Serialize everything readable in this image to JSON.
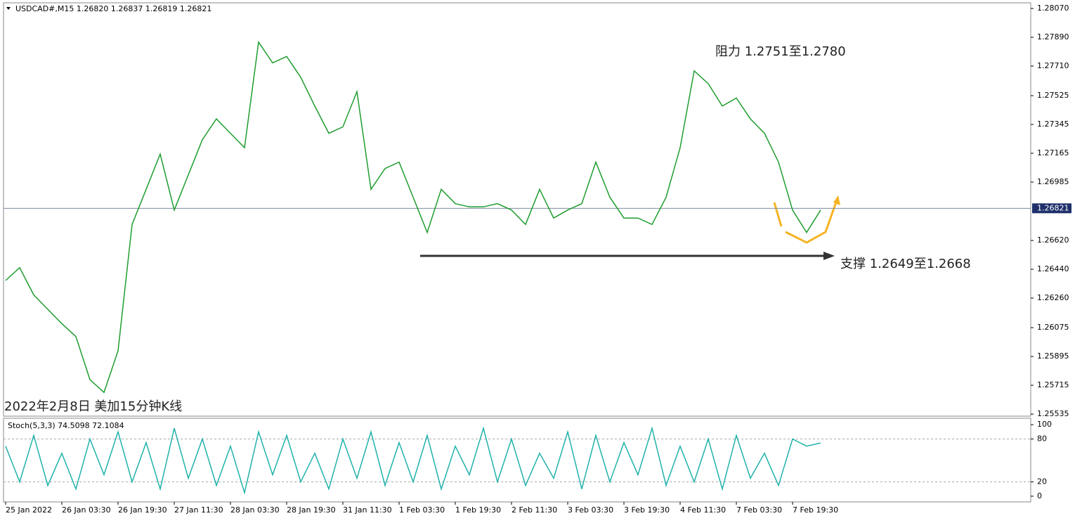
{
  "chart_data": [
    {
      "type": "line",
      "title": "USDCAD#,M15  1.26820 1.26837 1.26819 1.26821",
      "x": [
        0,
        4,
        8,
        12,
        16,
        20,
        24,
        28,
        32,
        36,
        40,
        44,
        48,
        52,
        56,
        60,
        64,
        68,
        72,
        76,
        80,
        84,
        88,
        92,
        96,
        100,
        104,
        108,
        112,
        116,
        120,
        124,
        128,
        132,
        136,
        140,
        144,
        148,
        152,
        156,
        160,
        164,
        168,
        172,
        176,
        180,
        184,
        188,
        192,
        196,
        200,
        204,
        208,
        212,
        216,
        220,
        224,
        228,
        232
      ],
      "series": [
        {
          "color": "#1f9d2f",
          "values": [
            1.2637,
            1.2645,
            1.2628,
            1.2619,
            1.261,
            1.2602,
            1.2575,
            1.2567,
            1.2593,
            1.2672,
            1.2694,
            1.2716,
            1.2681,
            1.2703,
            1.2725,
            1.2738,
            1.2729,
            1.272,
            1.2786,
            1.2773,
            1.2777,
            1.2764,
            1.2746,
            1.2729,
            1.2733,
            1.2755,
            1.2694,
            1.2707,
            1.2711,
            1.2689,
            1.2667,
            1.2694,
            1.2685,
            1.2683,
            1.2683,
            1.2685,
            1.2681,
            1.2672,
            1.2694,
            1.2676,
            1.2681,
            1.2685,
            1.2711,
            1.2689,
            1.2676,
            1.2676,
            1.2672,
            1.2689,
            1.272,
            1.2768,
            1.276,
            1.2746,
            1.2751,
            1.2738,
            1.2729,
            1.2711,
            1.2681,
            1.2667,
            1.2681
          ]
        }
      ],
      "xlim": [
        -0.6,
        291.8
      ],
      "ylim": [
        1.25522,
        1.28101
      ],
      "yticks": [
        {
          "value": 1.2807,
          "label": "1.28070"
        },
        {
          "value": 1.2789,
          "label": "1.27890"
        },
        {
          "value": 1.2771,
          "label": "1.27710"
        },
        1.27525,
        1.27345,
        1.27165,
        1.26985,
        {
          "value": 1.2662,
          "label": "1.26620"
        },
        {
          "value": 1.2644,
          "label": "1.26440"
        },
        {
          "value": 1.2626,
          "label": "1.26260"
        },
        1.26075,
        1.25895,
        1.25715,
        1.25535
      ],
      "current_price": 1.26821,
      "annotations": [
        "阻力 1.2751至1.2780",
        "支撑 1.2649至1.2668",
        "2022年2月8日 美加15分钟K线"
      ]
    },
    {
      "type": "line",
      "title": "Stoch(5,3,3) 74.5098 72.1084",
      "x": [
        0,
        4,
        8,
        12,
        16,
        20,
        24,
        28,
        32,
        36,
        40,
        44,
        48,
        52,
        56,
        60,
        64,
        68,
        72,
        76,
        80,
        84,
        88,
        92,
        96,
        100,
        104,
        108,
        112,
        116,
        120,
        124,
        128,
        132,
        136,
        140,
        144,
        148,
        152,
        156,
        160,
        164,
        168,
        172,
        176,
        180,
        184,
        188,
        192,
        196,
        200,
        204,
        208,
        212,
        216,
        220,
        224,
        228,
        232
      ],
      "series": [
        {
          "color": "#20b2aa",
          "values": [
            70,
            20,
            85,
            15,
            60,
            10,
            80,
            30,
            90,
            20,
            75,
            10,
            95,
            25,
            80,
            15,
            70,
            5,
            90,
            30,
            85,
            20,
            60,
            10,
            80,
            25,
            90,
            15,
            75,
            20,
            85,
            10,
            70,
            30,
            95,
            20,
            80,
            15,
            60,
            25,
            90,
            10,
            85,
            20,
            75,
            30,
            95,
            15,
            70,
            20,
            80,
            10,
            85,
            25,
            60,
            15,
            80,
            70,
            74.5
          ]
        }
      ],
      "xlim": [
        -0.6,
        291.8
      ],
      "ylim": [
        -8,
        109
      ],
      "yticks": [
        100,
        80,
        20,
        0
      ],
      "levels": [
        80,
        20
      ],
      "xticks": [
        {
          "value": 0,
          "label": "25 Jan 2022"
        },
        {
          "value": 16,
          "label": "26 Jan 03:30"
        },
        {
          "value": 32,
          "label": "26 Jan 19:30"
        },
        {
          "value": 48,
          "label": "27 Jan 11:30"
        },
        {
          "value": 64,
          "label": "28 Jan 03:30"
        },
        {
          "value": 80,
          "label": "28 Jan 19:30"
        },
        {
          "value": 96,
          "label": "31 Jan 11:30"
        },
        {
          "value": 112,
          "label": "1 Feb 03:30"
        },
        {
          "value": 128,
          "label": "1 Feb 19:30"
        },
        {
          "value": 144,
          "label": "2 Feb 11:30"
        },
        {
          "value": 160,
          "label": "3 Feb 03:30"
        },
        {
          "value": 176,
          "label": "3 Feb 19:30"
        },
        {
          "value": 192,
          "label": "4 Feb 11:30"
        },
        {
          "value": 208,
          "label": "7 Feb 03:30"
        },
        {
          "value": 224,
          "label": "7 Feb 19:30"
        }
      ]
    }
  ]
}
